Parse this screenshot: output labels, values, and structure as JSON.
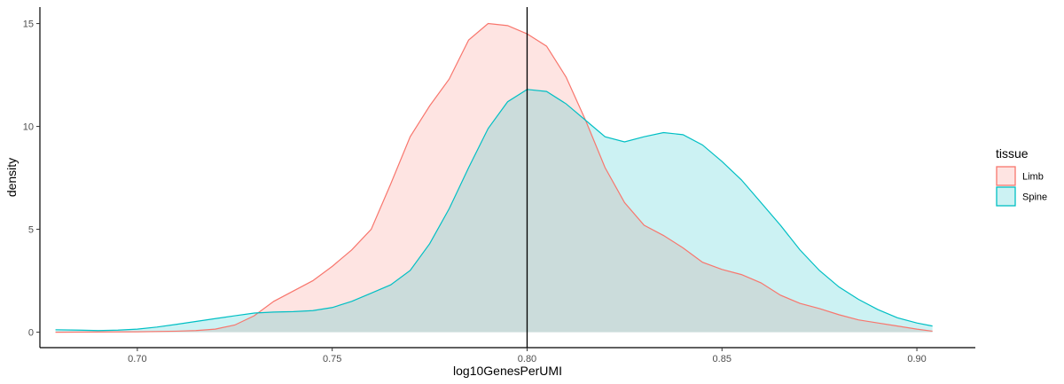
{
  "chart_data": {
    "type": "area",
    "xlabel": "log10GenesPerUMI",
    "ylabel": "density",
    "xlim": [
      0.675,
      0.915
    ],
    "ylim": [
      -0.75,
      15.8
    ],
    "x_ticks": [
      "0.70",
      "0.75",
      "0.80",
      "0.85",
      "0.90"
    ],
    "x_tick_values": [
      0.7,
      0.75,
      0.8,
      0.85,
      0.9
    ],
    "y_ticks": [
      "0",
      "5",
      "10",
      "15"
    ],
    "y_tick_values": [
      0,
      5,
      10,
      15
    ],
    "vline": 0.8,
    "grid": false,
    "legend": {
      "title": "tissue",
      "position": "right",
      "entries": [
        "Limb",
        "Spine"
      ]
    },
    "series": [
      {
        "name": "Limb",
        "color": "#F8766D",
        "fill": "#F8766D",
        "points": [
          [
            0.679,
            0.0
          ],
          [
            0.7,
            0.02
          ],
          [
            0.71,
            0.05
          ],
          [
            0.715,
            0.08
          ],
          [
            0.72,
            0.15
          ],
          [
            0.725,
            0.35
          ],
          [
            0.73,
            0.8
          ],
          [
            0.735,
            1.5
          ],
          [
            0.74,
            2.0
          ],
          [
            0.745,
            2.5
          ],
          [
            0.75,
            3.2
          ],
          [
            0.755,
            4.0
          ],
          [
            0.76,
            5.0
          ],
          [
            0.765,
            7.2
          ],
          [
            0.77,
            9.5
          ],
          [
            0.775,
            11.0
          ],
          [
            0.78,
            12.3
          ],
          [
            0.785,
            14.2
          ],
          [
            0.79,
            15.0
          ],
          [
            0.795,
            14.9
          ],
          [
            0.8,
            14.5
          ],
          [
            0.805,
            13.9
          ],
          [
            0.81,
            12.4
          ],
          [
            0.815,
            10.3
          ],
          [
            0.82,
            8.0
          ],
          [
            0.825,
            6.3
          ],
          [
            0.83,
            5.2
          ],
          [
            0.835,
            4.7
          ],
          [
            0.84,
            4.1
          ],
          [
            0.845,
            3.4
          ],
          [
            0.85,
            3.05
          ],
          [
            0.855,
            2.8
          ],
          [
            0.86,
            2.4
          ],
          [
            0.865,
            1.8
          ],
          [
            0.87,
            1.4
          ],
          [
            0.875,
            1.15
          ],
          [
            0.88,
            0.85
          ],
          [
            0.885,
            0.6
          ],
          [
            0.89,
            0.45
          ],
          [
            0.895,
            0.3
          ],
          [
            0.9,
            0.15
          ],
          [
            0.904,
            0.05
          ]
        ]
      },
      {
        "name": "Spine",
        "color": "#00BFC4",
        "fill": "#00BFC4",
        "points": [
          [
            0.679,
            0.12
          ],
          [
            0.685,
            0.1
          ],
          [
            0.69,
            0.08
          ],
          [
            0.695,
            0.1
          ],
          [
            0.7,
            0.15
          ],
          [
            0.705,
            0.25
          ],
          [
            0.71,
            0.38
          ],
          [
            0.715,
            0.52
          ],
          [
            0.72,
            0.66
          ],
          [
            0.725,
            0.8
          ],
          [
            0.73,
            0.93
          ],
          [
            0.735,
            0.98
          ],
          [
            0.74,
            1.0
          ],
          [
            0.745,
            1.05
          ],
          [
            0.75,
            1.2
          ],
          [
            0.755,
            1.5
          ],
          [
            0.76,
            1.9
          ],
          [
            0.765,
            2.3
          ],
          [
            0.77,
            3.0
          ],
          [
            0.775,
            4.3
          ],
          [
            0.78,
            6.0
          ],
          [
            0.785,
            8.0
          ],
          [
            0.79,
            9.9
          ],
          [
            0.795,
            11.2
          ],
          [
            0.8,
            11.8
          ],
          [
            0.805,
            11.7
          ],
          [
            0.81,
            11.1
          ],
          [
            0.815,
            10.3
          ],
          [
            0.82,
            9.5
          ],
          [
            0.825,
            9.25
          ],
          [
            0.83,
            9.5
          ],
          [
            0.835,
            9.7
          ],
          [
            0.84,
            9.6
          ],
          [
            0.845,
            9.1
          ],
          [
            0.85,
            8.3
          ],
          [
            0.855,
            7.4
          ],
          [
            0.86,
            6.3
          ],
          [
            0.865,
            5.2
          ],
          [
            0.87,
            4.0
          ],
          [
            0.875,
            3.0
          ],
          [
            0.88,
            2.2
          ],
          [
            0.885,
            1.6
          ],
          [
            0.89,
            1.1
          ],
          [
            0.895,
            0.7
          ],
          [
            0.9,
            0.45
          ],
          [
            0.904,
            0.3
          ]
        ]
      }
    ]
  }
}
